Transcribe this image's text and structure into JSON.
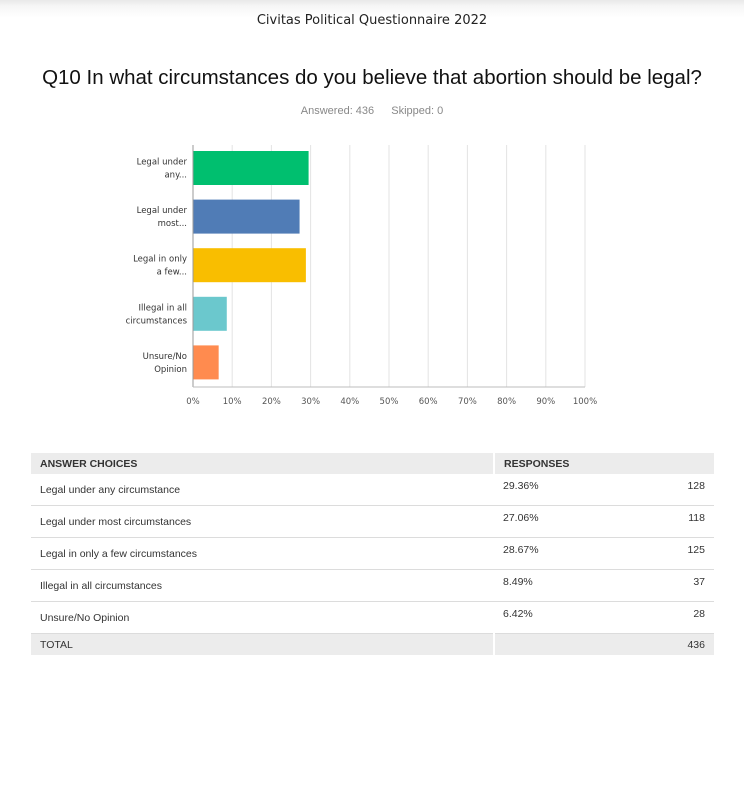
{
  "survey_title": "Civitas Political Questionnaire 2022",
  "question": "Q10 In what circumstances do you believe that abortion should be legal?",
  "answered_label": "Answered: 436",
  "skipped_label": "Skipped: 0",
  "chart_data": {
    "type": "bar",
    "orientation": "horizontal",
    "categories": [
      [
        "Legal under",
        "any..."
      ],
      [
        "Legal under",
        "most..."
      ],
      [
        "Legal in only",
        "a few..."
      ],
      [
        "Illegal in all",
        "circumstances"
      ],
      [
        "Unsure/No",
        "Opinion"
      ]
    ],
    "values": [
      29.36,
      27.06,
      28.67,
      8.49,
      6.42
    ],
    "colors": [
      "#00bf6f",
      "#507cb6",
      "#f9be00",
      "#6bc8cd",
      "#ff8b4f"
    ],
    "xlim": [
      0,
      100
    ],
    "xticks": [
      "0%",
      "10%",
      "20%",
      "30%",
      "40%",
      "50%",
      "60%",
      "70%",
      "80%",
      "90%",
      "100%"
    ],
    "grid": true
  },
  "table": {
    "headers": [
      "ANSWER CHOICES",
      "RESPONSES"
    ],
    "rows": [
      {
        "choice": "Legal under any circumstance",
        "pct": "29.36%",
        "count": "128"
      },
      {
        "choice": "Legal under most circumstances",
        "pct": "27.06%",
        "count": "118"
      },
      {
        "choice": "Legal in only a few circumstances",
        "pct": "28.67%",
        "count": "125"
      },
      {
        "choice": "Illegal in all circumstances",
        "pct": "8.49%",
        "count": "37"
      },
      {
        "choice": "Unsure/No Opinion",
        "pct": "6.42%",
        "count": "28"
      }
    ],
    "total_label": "TOTAL",
    "total_count": "436"
  }
}
